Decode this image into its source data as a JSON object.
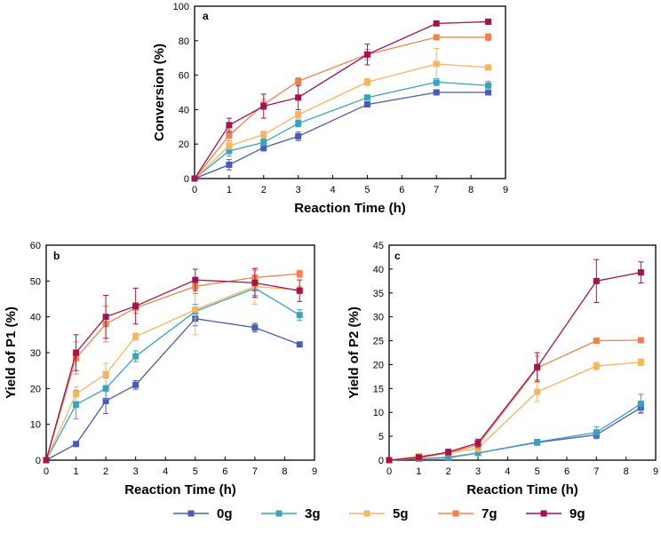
{
  "legend": {
    "position": "bottom",
    "entries": [
      {
        "label": "0g",
        "color": "#4a5bb5"
      },
      {
        "label": "3g",
        "color": "#3aa2bf"
      },
      {
        "label": "5g",
        "color": "#f9b45e"
      },
      {
        "label": "7g",
        "color": "#f0824f"
      },
      {
        "label": "9g",
        "color": "#a5124e"
      }
    ]
  },
  "chart_data": [
    {
      "panel": "a",
      "type": "line",
      "xlabel": "Reaction Time (h)",
      "ylabel": "Conversion (%)",
      "xlim": [
        0,
        9
      ],
      "ylim": [
        0,
        100
      ],
      "xticks": [
        0,
        1,
        2,
        3,
        4,
        5,
        6,
        7,
        8,
        9
      ],
      "yticks": [
        0,
        20,
        40,
        60,
        80,
        100
      ],
      "grid": false,
      "x": [
        0,
        1,
        2,
        3,
        5,
        7,
        8.5
      ],
      "series": [
        {
          "name": "0g",
          "values": [
            0,
            8,
            18,
            24.5,
            43,
            50,
            50
          ],
          "errors": [
            0,
            3,
            2,
            2.5,
            1.5,
            1,
            1
          ]
        },
        {
          "name": "3g",
          "values": [
            0,
            16,
            21,
            32,
            47,
            56,
            54
          ],
          "errors": [
            0,
            3,
            2,
            2,
            1.5,
            2,
            2.5
          ]
        },
        {
          "name": "5g",
          "values": [
            0,
            19,
            25.5,
            37,
            56,
            66.5,
            64.5
          ],
          "errors": [
            0,
            2,
            2,
            2,
            2,
            9,
            1.5
          ]
        },
        {
          "name": "7g",
          "values": [
            0,
            25,
            43,
            56.5,
            72,
            82,
            82
          ],
          "errors": [
            0,
            3,
            3,
            2,
            3,
            1,
            2
          ]
        },
        {
          "name": "9g",
          "values": [
            0,
            31,
            42,
            47,
            72,
            90,
            91
          ],
          "errors": [
            0,
            4,
            7,
            7,
            6,
            1,
            1
          ]
        }
      ]
    },
    {
      "panel": "b",
      "type": "line",
      "xlabel": "Reaction Time (h)",
      "ylabel": "Yield of P1 (%)",
      "xlim": [
        0,
        9
      ],
      "ylim": [
        0,
        60
      ],
      "xticks": [
        0,
        1,
        2,
        3,
        4,
        5,
        6,
        7,
        8,
        9
      ],
      "yticks": [
        0,
        10,
        20,
        30,
        40,
        50,
        60
      ],
      "grid": false,
      "x": [
        0,
        1,
        2,
        3,
        5,
        7,
        8.5
      ],
      "series": [
        {
          "name": "0g",
          "values": [
            0,
            4.5,
            16.5,
            21,
            39.5,
            37,
            32.3
          ],
          "errors": [
            0,
            0.5,
            3.5,
            1.2,
            2,
            1.2,
            0.5
          ]
        },
        {
          "name": "3g",
          "values": [
            0,
            15.5,
            20,
            29,
            41.5,
            48,
            40.5
          ],
          "errors": [
            0,
            4,
            3,
            1.5,
            2,
            2,
            1.5
          ]
        },
        {
          "name": "5g",
          "values": [
            0,
            18.5,
            24,
            34.5,
            42,
            48.5,
            47.5
          ],
          "errors": [
            0,
            2,
            3,
            1,
            7,
            5,
            1
          ]
        },
        {
          "name": "7g",
          "values": [
            0,
            28.5,
            38,
            42.5,
            48.5,
            51,
            52
          ],
          "errors": [
            0,
            4.5,
            5,
            1.5,
            2,
            2,
            1
          ]
        },
        {
          "name": "9g",
          "values": [
            0,
            30,
            40,
            43,
            50.3,
            49.5,
            47.3
          ],
          "errors": [
            0,
            5,
            6,
            5,
            3,
            4,
            3
          ]
        }
      ]
    },
    {
      "panel": "c",
      "type": "line",
      "xlabel": "Reaction Time (h)",
      "ylabel": "Yield of P2 (%)",
      "xlim": [
        0,
        9
      ],
      "ylim": [
        0,
        45
      ],
      "xticks": [
        0,
        1,
        2,
        3,
        4,
        5,
        6,
        7,
        8,
        9
      ],
      "yticks": [
        0,
        5,
        10,
        15,
        20,
        25,
        30,
        35,
        40,
        45
      ],
      "grid": false,
      "x": [
        0,
        1,
        2,
        3,
        5,
        7,
        8.5
      ],
      "series": [
        {
          "name": "0g",
          "values": [
            0,
            0.3,
            0.5,
            1.5,
            3.7,
            5.3,
            11
          ],
          "errors": [
            0,
            0.2,
            0.3,
            0.4,
            0.5,
            0.8,
            1
          ]
        },
        {
          "name": "3g",
          "values": [
            0,
            0.3,
            0.6,
            1.5,
            3.8,
            5.8,
            11.8
          ],
          "errors": [
            0,
            0.2,
            0.3,
            0.4,
            0.5,
            1.2,
            2
          ]
        },
        {
          "name": "5g",
          "values": [
            0,
            0.8,
            1.5,
            2.5,
            14.3,
            19.7,
            20.5
          ],
          "errors": [
            0,
            0.3,
            0.5,
            0.8,
            2,
            0.8,
            0.7
          ]
        },
        {
          "name": "7g",
          "values": [
            0,
            0.5,
            1.5,
            3.2,
            19.3,
            25,
            25.1
          ],
          "errors": [
            0,
            0.3,
            0.5,
            0.8,
            2.5,
            0.3,
            0.3
          ]
        },
        {
          "name": "9g",
          "values": [
            0,
            0.6,
            1.7,
            3.6,
            19.5,
            37.5,
            39.3
          ],
          "errors": [
            0,
            0.3,
            0.6,
            0.8,
            3,
            4.5,
            2.2
          ]
        }
      ]
    }
  ]
}
